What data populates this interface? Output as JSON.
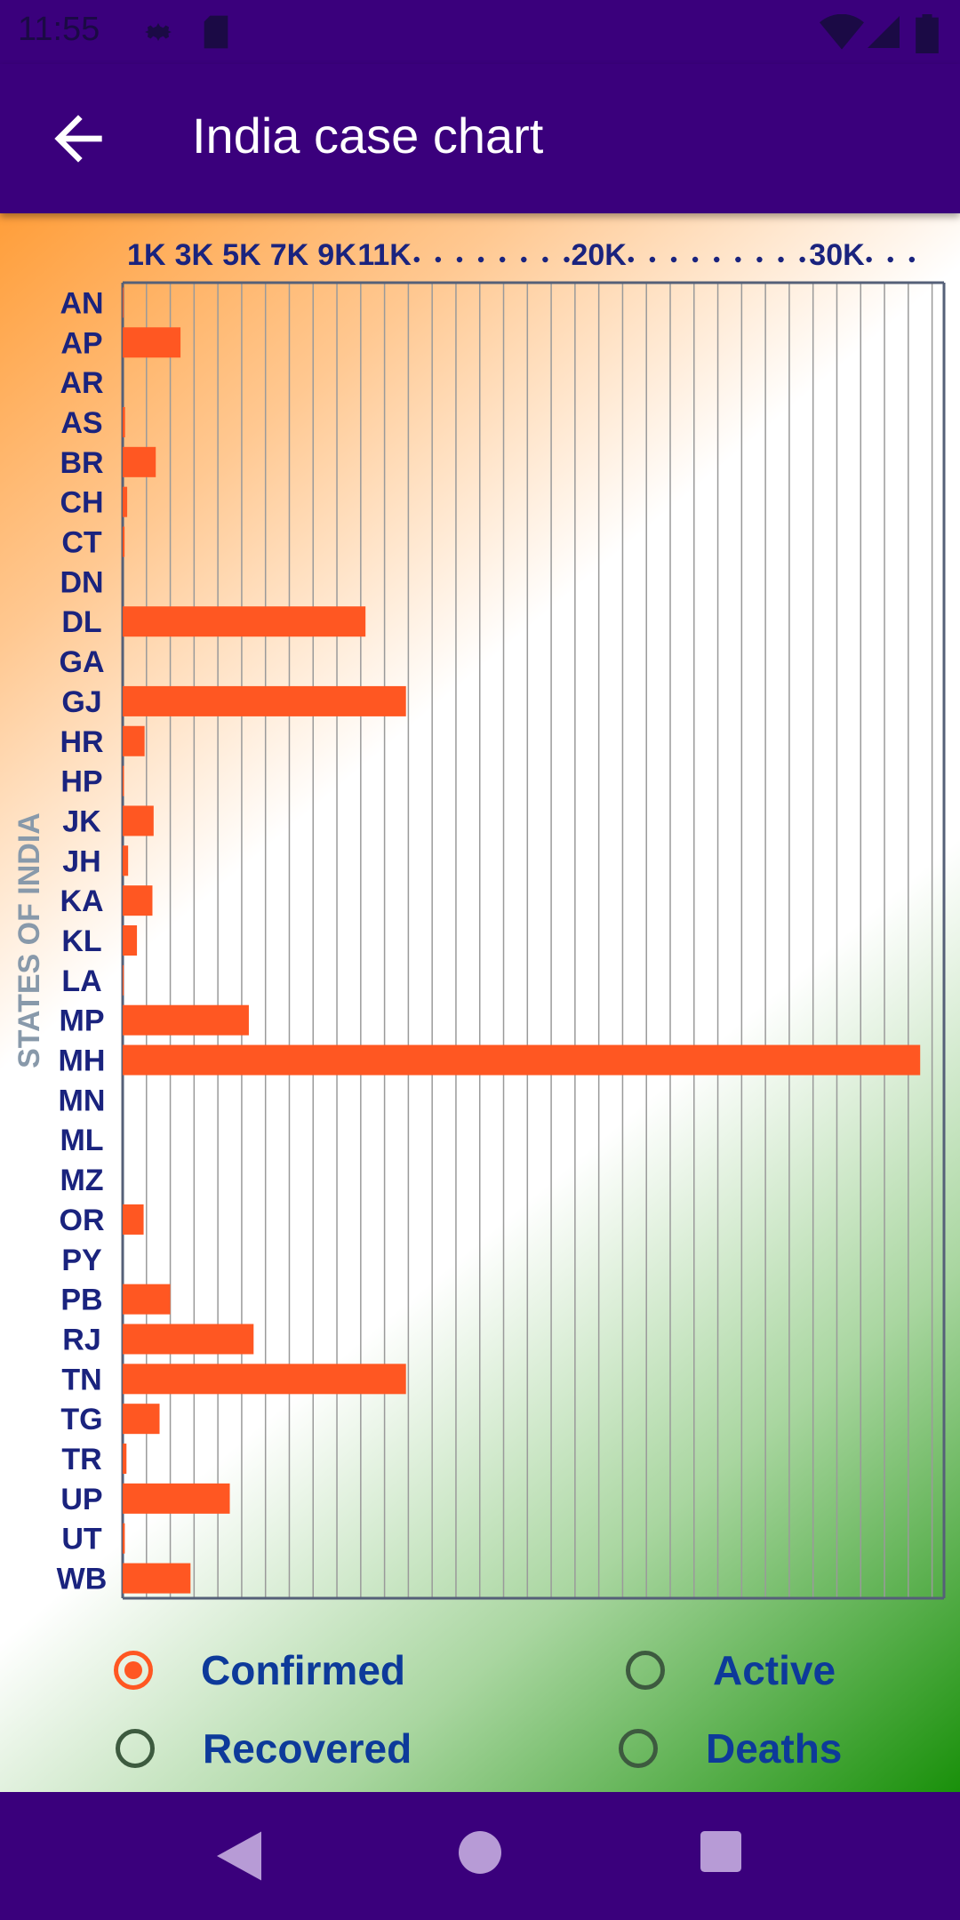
{
  "status_bar": {
    "time": "11:55",
    "icons": [
      "gear-icon",
      "sd-card-icon",
      "wifi-icon",
      "signal-icon",
      "battery-icon"
    ]
  },
  "app_bar": {
    "title": "India case chart",
    "back_icon": "arrow-back-icon"
  },
  "chart_data": {
    "type": "bar",
    "orientation": "horizontal",
    "ylabel": "STATES OF INDIA",
    "x_tick_labels": [
      "1K",
      "3K",
      "5K",
      "7K",
      "9K",
      "11K",
      "20K",
      "30K"
    ],
    "x_tick_values": [
      1000,
      3000,
      5000,
      7000,
      9000,
      11000,
      20000,
      30000
    ],
    "xlim": [
      0,
      34500
    ],
    "grid": true,
    "categories": [
      "AN",
      "AP",
      "AR",
      "AS",
      "BR",
      "CH",
      "CT",
      "DN",
      "DL",
      "GA",
      "GJ",
      "HR",
      "HP",
      "JK",
      "JH",
      "KA",
      "KL",
      "LA",
      "MP",
      "MH",
      "MN",
      "ML",
      "MZ",
      "OR",
      "PY",
      "PB",
      "RJ",
      "TN",
      "TG",
      "TR",
      "UP",
      "UT",
      "WB"
    ],
    "series": [
      {
        "name": "Confirmed",
        "values": [
          33,
          2430,
          1,
          100,
          1390,
          190,
          80,
          1,
          10200,
          7,
          11900,
          920,
          55,
          1300,
          230,
          1250,
          600,
          43,
          5300,
          33500,
          2,
          13,
          1,
          880,
          12,
          2000,
          5500,
          11900,
          1550,
          160,
          4500,
          90,
          2850
        ]
      }
    ],
    "bar_color": "#ff5722"
  },
  "legend": {
    "options": [
      {
        "label": "Confirmed",
        "checked": true
      },
      {
        "label": "Active",
        "checked": false
      },
      {
        "label": "Recovered",
        "checked": false
      },
      {
        "label": "Deaths",
        "checked": false
      }
    ]
  },
  "nav_bar": {
    "back": "nav-back-icon",
    "home": "nav-home-icon",
    "recents": "nav-recents-icon"
  }
}
